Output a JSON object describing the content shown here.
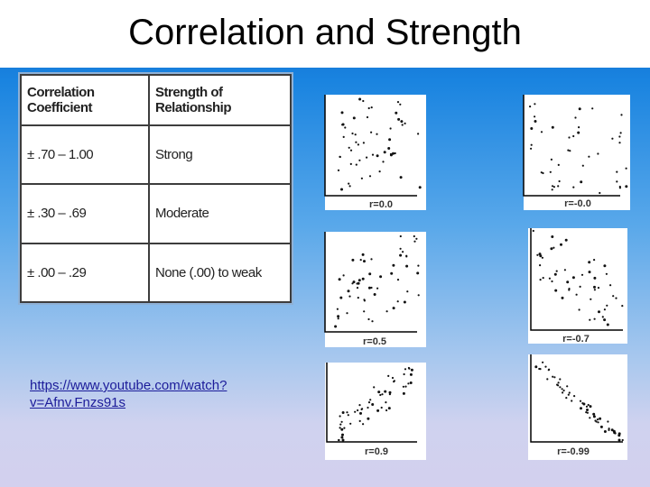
{
  "slide": {
    "title": "Correlation and Strength",
    "link_text": "https://www.youtube.com/watch?v=Afnv.Fnzs91s"
  },
  "table": {
    "headers": [
      "Correlation Coefficient",
      "Strength of Relationship"
    ],
    "rows": [
      [
        "± .70 – 1.00",
        "Strong"
      ],
      [
        "± .30 – .69",
        "Moderate"
      ],
      [
        "± .00 – .29",
        "None (.00) to weak"
      ]
    ]
  },
  "scatter_labels": [
    "r=0.0",
    "r=-0.0",
    "r=0.5",
    "r=-0.7",
    "r=0.9",
    "r=-0.99"
  ]
}
